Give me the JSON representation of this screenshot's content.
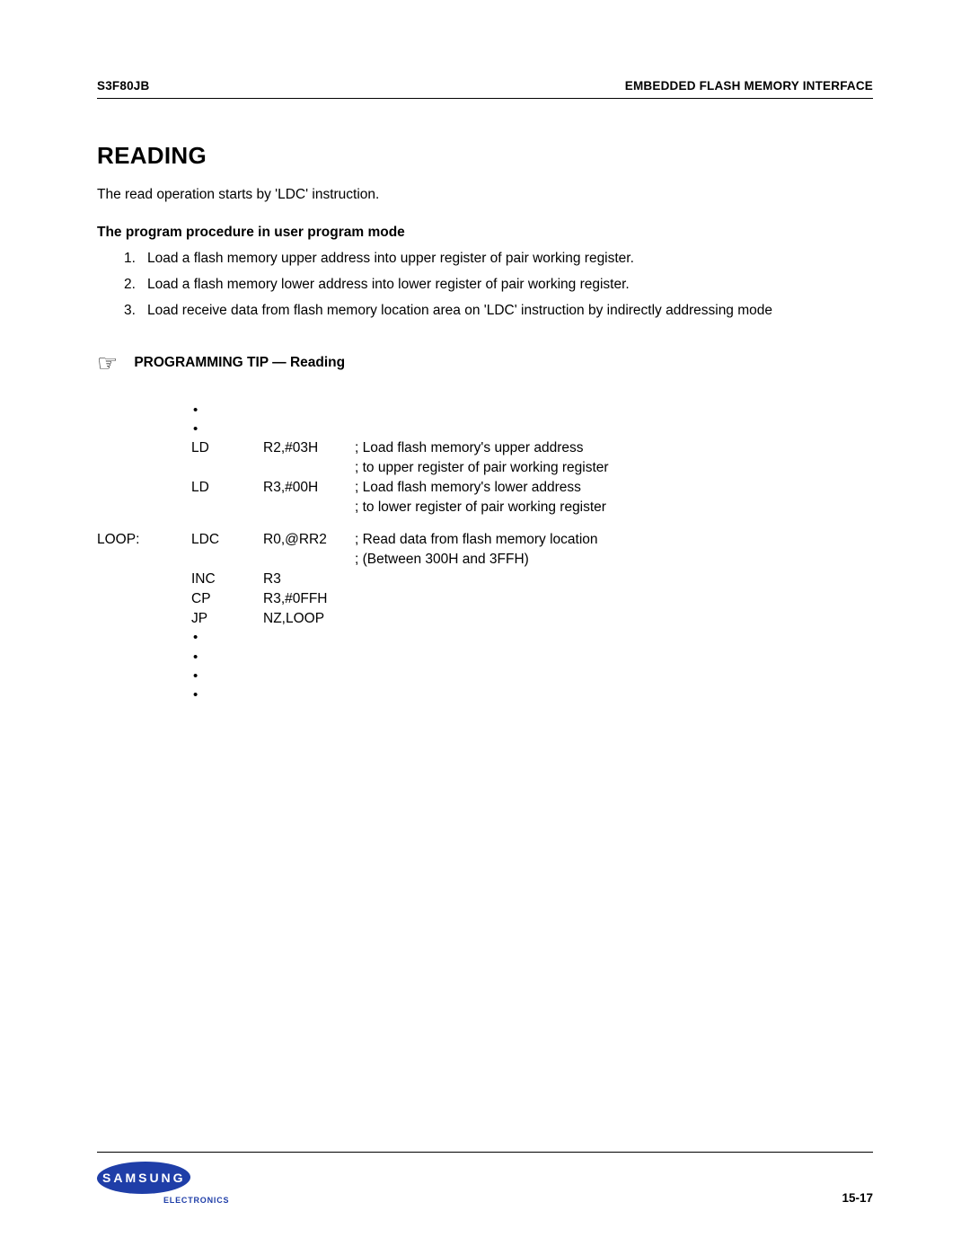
{
  "header": {
    "left": "S3F80JB",
    "right": "EMBEDDED FLASH MEMORY INTERFACE"
  },
  "heading": "READING",
  "intro": "The read operation starts by 'LDC' instruction.",
  "subheading": "The program procedure in user program mode",
  "procedure": [
    "Load a flash memory upper address into upper register of pair working register.",
    "Load a flash memory lower address into lower register of pair working register.",
    "Load receive data from flash memory location area on 'LDC' instruction by indirectly addressing mode"
  ],
  "tip": {
    "icon": "☞",
    "title": "PROGRAMMING TIP — Reading"
  },
  "code": {
    "dots_top": [
      "•",
      "•"
    ],
    "rows": [
      {
        "label": "",
        "mne": "LD",
        "opnd": "R2,#03H",
        "comment": "; Load flash memory's upper address"
      },
      {
        "label": "",
        "mne": "",
        "opnd": "",
        "comment": "; to upper register of pair working register"
      },
      {
        "label": "",
        "mne": "LD",
        "opnd": "R3,#00H",
        "comment": "; Load flash memory's lower address"
      },
      {
        "label": "",
        "mne": "",
        "opnd": "",
        "comment": "; to lower register of pair working register"
      },
      {
        "gap": true
      },
      {
        "label": "LOOP:",
        "mne": "LDC",
        "opnd": "R0,@RR2",
        "comment": "; Read data from flash memory location"
      },
      {
        "label": "",
        "mne": "",
        "opnd": "",
        "comment": "; (Between 300H and 3FFH)"
      },
      {
        "label": "",
        "mne": "INC",
        "opnd": "R3",
        "comment": ""
      },
      {
        "label": "",
        "mne": "CP",
        "opnd": "R3,#0FFH",
        "comment": ""
      },
      {
        "label": "",
        "mne": "JP",
        "opnd": "NZ,LOOP",
        "comment": ""
      }
    ],
    "dots_bottom": [
      "•",
      "•",
      "•",
      "•"
    ]
  },
  "footer": {
    "logo_text": "SAMSUNG",
    "electronics": "ELECTRONICS",
    "page_number": "15-17",
    "logo_color": "#1f3ea8"
  }
}
